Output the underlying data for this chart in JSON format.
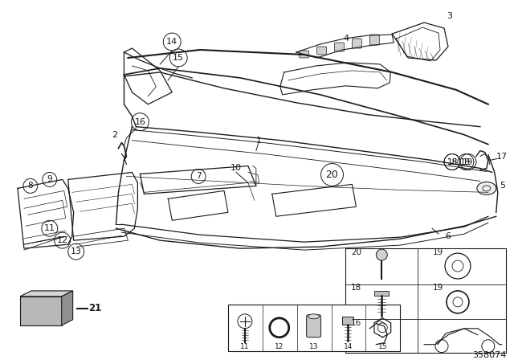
{
  "bg_color": "#ffffff",
  "diagram_number": "358074",
  "lc": "#1a1a1a",
  "lw": 0.8
}
